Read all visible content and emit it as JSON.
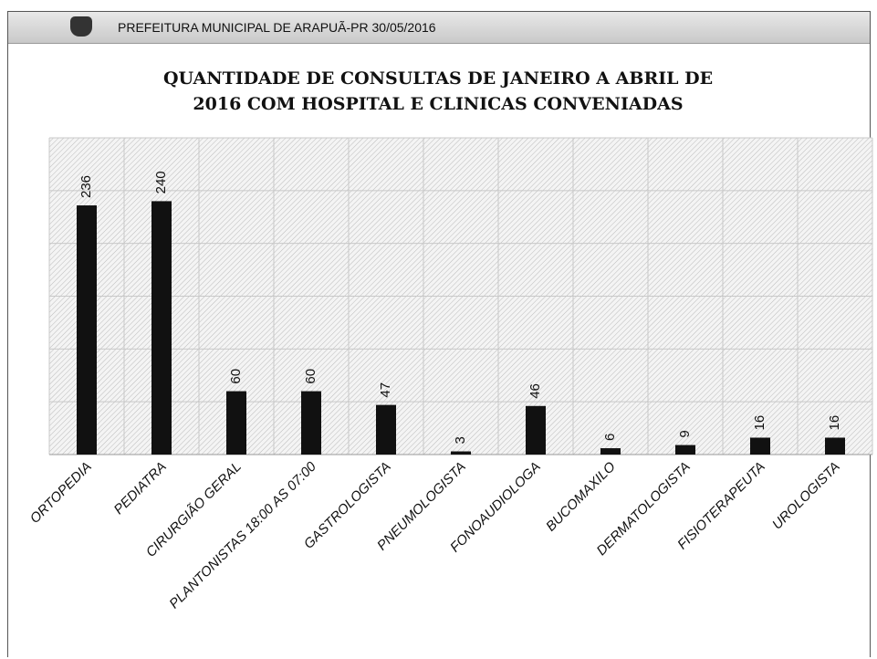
{
  "header": {
    "text": "PREFEITURA MUNICIPAL DE ARAPUÃ-PR 30/05/2016"
  },
  "chart_data": {
    "type": "bar",
    "title": "QUANTIDADE DE CONSULTAS DE JANEIRO A ABRIL DE 2016 COM HOSPITAL E CLINICAS CONVENIADAS",
    "categories": [
      "ORTOPEDIA",
      "PEDIATRA",
      "CIRURGIÃO GERAL",
      "PLANTONISTAS 18:00 AS 07:00",
      "GASTROLOGISTA",
      "PNEUMOLOGISTA",
      "FONOAUDIOLOGA",
      "BUCOMAXILO",
      "DERMATOLOGISTA",
      "FISIOTERAPEUTA",
      "UROLOGISTA"
    ],
    "values": [
      236,
      240,
      60,
      60,
      47,
      3,
      46,
      6,
      9,
      16,
      16
    ],
    "color": "#111111",
    "ylim": [
      0,
      300
    ],
    "yticks": [
      0,
      50,
      100,
      150,
      200,
      250,
      300
    ],
    "grid": true
  }
}
